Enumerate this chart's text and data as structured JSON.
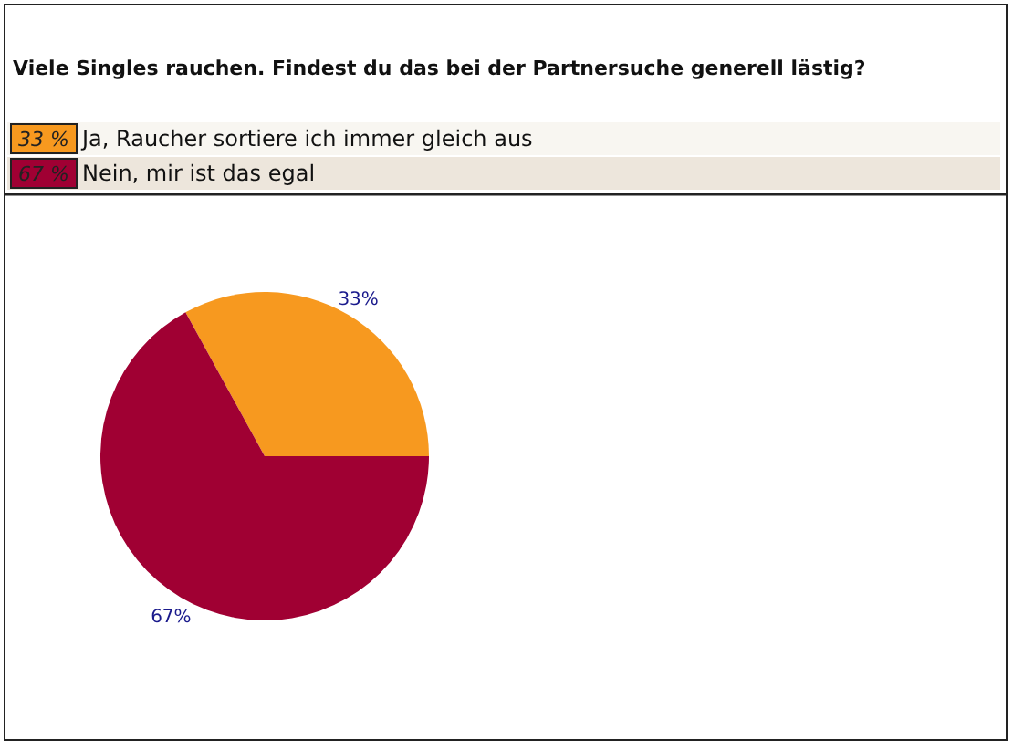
{
  "chart_data": {
    "type": "pie",
    "title": "Viele Singles rauchen. Findest du das bei der Partnersuche generell lästig?",
    "categories": [
      "Ja, Raucher sortiere ich immer gleich aus",
      "Nein, mir ist das egal"
    ],
    "values": [
      33,
      67
    ],
    "colors": [
      "#f7991f",
      "#a00033"
    ],
    "value_labels": [
      "33%",
      "67%"
    ],
    "annotations": [
      "33 %",
      "67 %"
    ],
    "legend": "top left"
  }
}
